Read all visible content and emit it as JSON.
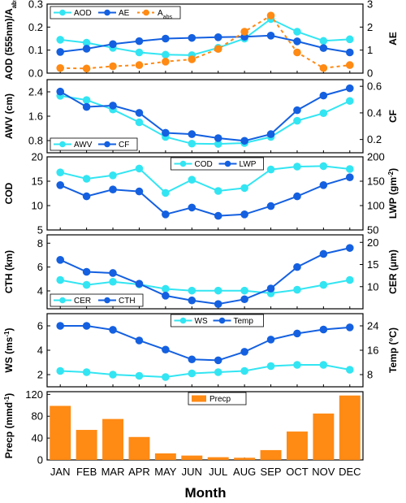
{
  "chart_data": {
    "type": "multi-panel",
    "categories": [
      "JAN",
      "FEB",
      "MAR",
      "APR",
      "MAY",
      "JUN",
      "JUL",
      "AUG",
      "SEP",
      "OCT",
      "NOV",
      "DEC"
    ],
    "xlabel": "Month",
    "colors": {
      "cyan": "#33E5F2",
      "blue": "#1460E0",
      "orange": "#FF8A14"
    },
    "panels": [
      {
        "id": "p1",
        "type": "line",
        "left_axis": {
          "label": "AOD (555nm)/A",
          "label_sub": "abs",
          "range": [
            0,
            0.3
          ],
          "ticks": [
            "0.0",
            "0.1",
            "0.2",
            "0.3"
          ],
          "tick_values": [
            0,
            0.1,
            0.2,
            0.3
          ]
        },
        "right_axis": {
          "label": "AE",
          "range": [
            0,
            3
          ],
          "ticks": [
            "0",
            "1",
            "2",
            "3"
          ],
          "tick_values": [
            0,
            1,
            2,
            3
          ]
        },
        "legend": {
          "position": "top-left",
          "items": [
            {
              "label": "AOD",
              "sub": "",
              "color": "#33E5F2",
              "dashed": false
            },
            {
              "label": "AE",
              "sub": "",
              "color": "#1460E0",
              "dashed": false
            },
            {
              "label": "A",
              "sub": "abs",
              "color": "#FF8A14",
              "dashed": true
            }
          ]
        },
        "series": [
          {
            "name": "AOD",
            "axis": "left",
            "color": "#33E5F2",
            "dashed": false,
            "values": [
              0.145,
              0.132,
              0.11,
              0.09,
              0.08,
              0.078,
              0.11,
              0.15,
              0.235,
              0.18,
              0.14,
              0.147
            ]
          },
          {
            "name": "AE",
            "axis": "right",
            "color": "#1460E0",
            "dashed": false,
            "values": [
              0.92,
              1.06,
              1.26,
              1.39,
              1.5,
              1.53,
              1.56,
              1.58,
              1.63,
              1.38,
              1.09,
              0.9
            ]
          },
          {
            "name": "A",
            "axis": "left",
            "color": "#FF8A14",
            "dashed": true,
            "values": [
              0.022,
              0.02,
              0.03,
              0.035,
              0.05,
              0.06,
              0.105,
              0.18,
              0.25,
              0.09,
              0.022,
              0.035
            ]
          }
        ]
      },
      {
        "id": "p2",
        "type": "line",
        "left_axis": {
          "label": "AWV (cm)",
          "label_sub": "",
          "range": [
            0.4,
            2.8
          ],
          "ticks": [
            "0.8",
            "1.6",
            "2.4"
          ],
          "tick_values": [
            0.8,
            1.6,
            2.4
          ]
        },
        "right_axis": {
          "label": "CF",
          "label_sub": "",
          "range": [
            0.1,
            0.65
          ],
          "ticks": [
            "0.2",
            "0.4",
            "0.6"
          ],
          "tick_values": [
            0.2,
            0.4,
            0.6
          ]
        },
        "legend": {
          "position": "bottom-left",
          "items": [
            {
              "label": "AWV",
              "sub": "",
              "color": "#33E5F2",
              "dashed": false
            },
            {
              "label": "CF",
              "sub": "",
              "color": "#1460E0",
              "dashed": false
            }
          ]
        },
        "series": [
          {
            "name": "AWV",
            "axis": "left",
            "color": "#33E5F2",
            "dashed": false,
            "values": [
              2.27,
              2.13,
              1.82,
              1.4,
              0.92,
              0.7,
              0.69,
              0.72,
              0.92,
              1.45,
              1.7,
              2.1
            ]
          },
          {
            "name": "CF",
            "axis": "right",
            "color": "#1460E0",
            "dashed": false,
            "values": [
              0.56,
              0.445,
              0.455,
              0.4,
              0.25,
              0.24,
              0.21,
              0.19,
              0.24,
              0.42,
              0.53,
              0.585
            ]
          }
        ]
      },
      {
        "id": "p3",
        "type": "line",
        "left_axis": {
          "label": "COD",
          "label_sub": "",
          "range": [
            5,
            20
          ],
          "ticks": [
            "5",
            "10",
            "15",
            "20"
          ],
          "tick_values": [
            5,
            10,
            15,
            20
          ]
        },
        "right_axis": {
          "label": "LWP (gm",
          "label_sup": "-2",
          "label_tail": ")",
          "range": [
            50,
            200
          ],
          "ticks": [
            "50",
            "100",
            "150",
            "200"
          ],
          "tick_values": [
            50,
            100,
            150,
            200
          ]
        },
        "legend": {
          "position": "top-center",
          "items": [
            {
              "label": "COD",
              "sub": "",
              "color": "#33E5F2",
              "dashed": false
            },
            {
              "label": "LWP",
              "sub": "",
              "color": "#1460E0",
              "dashed": false
            }
          ]
        },
        "series": [
          {
            "name": "COD",
            "axis": "left",
            "color": "#33E5F2",
            "dashed": false,
            "values": [
              16.8,
              15.5,
              16.2,
              17.6,
              12.6,
              15.3,
              13,
              13.6,
              17.4,
              18,
              18.1,
              17.5
            ]
          },
          {
            "name": "LWP",
            "axis": "right",
            "color": "#1460E0",
            "dashed": false,
            "values": [
              142,
              119,
              133,
              129,
              82,
              96,
              79,
              82,
              99,
              119,
              142,
              158
            ]
          }
        ]
      },
      {
        "id": "p4",
        "type": "line",
        "left_axis": {
          "label": "CTH (km)",
          "label_sub": "",
          "range": [
            2.5,
            8.7
          ],
          "ticks": [
            "4",
            "6",
            "8"
          ],
          "tick_values": [
            4,
            6,
            8
          ]
        },
        "right_axis": {
          "label": "CER (μm)",
          "label_sub": "",
          "range": [
            5,
            21.7
          ],
          "ticks": [
            "10",
            "15",
            "20"
          ],
          "tick_values": [
            10,
            15,
            20
          ]
        },
        "legend": {
          "position": "bottom-left",
          "items": [
            {
              "label": "CER",
              "sub": "",
              "color": "#33E5F2",
              "dashed": false
            },
            {
              "label": "CTH",
              "sub": "",
              "color": "#1460E0",
              "dashed": false
            }
          ]
        },
        "series": [
          {
            "name": "CER",
            "axis": "right",
            "color": "#33E5F2",
            "dashed": false,
            "values": [
              11.5,
              10.4,
              11.1,
              10.5,
              9.5,
              9.1,
              9.1,
              9.1,
              8.5,
              9.3,
              10.4,
              11.5
            ]
          },
          {
            "name": "CTH",
            "axis": "left",
            "color": "#1460E0",
            "dashed": false,
            "values": [
              6.6,
              5.6,
              5.5,
              4.6,
              3.6,
              3.2,
              2.9,
              3.3,
              4.2,
              6,
              7.1,
              7.6
            ]
          }
        ]
      },
      {
        "id": "p5",
        "type": "line",
        "left_axis": {
          "label": "WS (ms",
          "label_sup": "-1",
          "label_tail": ")",
          "range": [
            1,
            7
          ],
          "ticks": [
            "2",
            "4",
            "6"
          ],
          "tick_values": [
            2,
            4,
            6
          ]
        },
        "right_axis": {
          "label": "Temp (°C)",
          "label_sub": "",
          "range": [
            4,
            28
          ],
          "ticks": [
            "8",
            "16",
            "24"
          ],
          "tick_values": [
            8,
            16,
            24
          ]
        },
        "legend": {
          "position": "top-center",
          "items": [
            {
              "label": "WS",
              "sub": "",
              "color": "#33E5F2",
              "dashed": false
            },
            {
              "label": "Temp",
              "sub": "",
              "color": "#1460E0",
              "dashed": false
            }
          ]
        },
        "series": [
          {
            "name": "WS",
            "axis": "left",
            "color": "#33E5F2",
            "dashed": false,
            "values": [
              2.3,
              2.2,
              2,
              1.9,
              1.8,
              2.1,
              2.2,
              2.3,
              2.7,
              2.8,
              2.8,
              2.4
            ]
          },
          {
            "name": "Temp",
            "axis": "right",
            "color": "#1460E0",
            "dashed": false,
            "values": [
              24,
              24,
              22.7,
              19.2,
              16.2,
              13,
              12.7,
              15.5,
              19.5,
              21.5,
              22.8,
              23.5
            ]
          }
        ]
      },
      {
        "id": "p6",
        "type": "bar",
        "left_axis": {
          "label": "Precp (mmd",
          "label_sup": "-1",
          "label_tail": ")",
          "range": [
            0,
            125
          ],
          "ticks": [
            "0",
            "40",
            "80",
            "120"
          ],
          "tick_values": [
            0,
            40,
            80,
            120
          ]
        },
        "legend": {
          "position": "top-center",
          "items": [
            {
              "label": "Precp",
              "sub": "",
              "color": "#FF8A14",
              "dashed": false,
              "bar": true
            }
          ]
        },
        "series": [
          {
            "name": "Precp",
            "axis": "left",
            "color": "#FF8A14",
            "values": [
              99,
              55,
              75,
              42,
              12,
              8,
              5,
              4,
              18,
              52,
              85,
              118
            ]
          }
        ]
      }
    ]
  }
}
